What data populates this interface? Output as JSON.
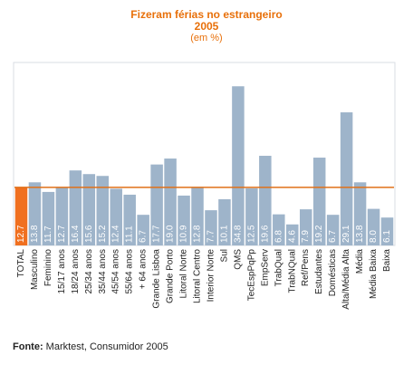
{
  "chart_data": {
    "type": "bar",
    "title": "Fizeram férias no estrangeiro",
    "subtitle": "2005",
    "unit_label": "(em %)",
    "categories": [
      "TOTAL",
      "Masculino",
      "Feminino",
      "15/17 anos",
      "18/24 anos",
      "25/34 anos",
      "35/44 anos",
      "45/54 anos",
      "55/64 anos",
      "+ 64 anos",
      "Grande Lisboa",
      "Grande Porto",
      "Litoral Norte",
      "Litoral Centro",
      "Interior Norte",
      "Sul",
      "QMS",
      "TecEspPqPp",
      "EmpServ",
      "TrabQual",
      "TrabNQual",
      "Ref/Pens",
      "Estudantes",
      "Domésticas",
      "Alta/Média Alta",
      "Média",
      "Média Baixa",
      "Baixa"
    ],
    "values": [
      12.7,
      13.8,
      11.7,
      12.7,
      16.4,
      15.6,
      15.2,
      12.4,
      11.1,
      6.7,
      17.7,
      19.0,
      10.9,
      12.8,
      7.7,
      10.1,
      34.8,
      12.5,
      19.6,
      6.8,
      4.6,
      7.9,
      19.2,
      6.7,
      29.1,
      13.8,
      8.0,
      6.1
    ],
    "value_labels": [
      "12.7",
      "13.8",
      "11.7",
      "12.7",
      "16.4",
      "15.6",
      "15.2",
      "12.4",
      "11.1",
      "6.7",
      "17.7",
      "19.0",
      "10.9",
      "12.8",
      "7.7",
      "10.1",
      "34.8",
      "12.5",
      "19.6",
      "6.8",
      "4.6",
      "7.9",
      "19.2",
      "6.7",
      "29.1",
      "13.8",
      "8.0",
      "6.1"
    ],
    "highlight_index": 0,
    "reference_line": 12.7,
    "ylim": [
      0,
      40
    ],
    "grid": false,
    "colors": {
      "title": "#e8700a",
      "bar": "#9eb4ca",
      "highlight_bar": "#f07020",
      "reference_line": "#e07018",
      "value_label": "#ffffff",
      "plot_border": "#d8dde3"
    }
  },
  "source": {
    "label": "Fonte:",
    "text": " Marktest, Consumidor 2005"
  }
}
